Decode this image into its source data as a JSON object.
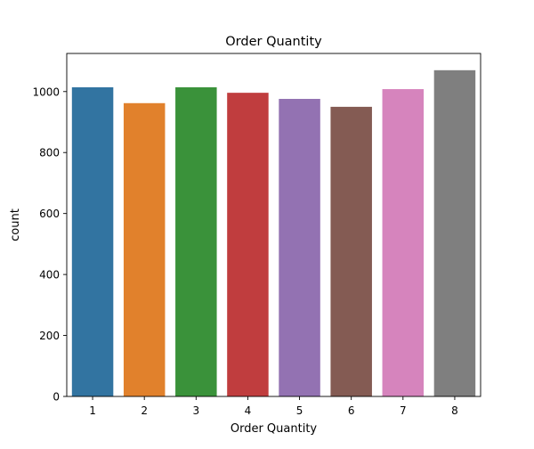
{
  "chart_data": {
    "type": "bar",
    "title": "Order Quantity",
    "xlabel": "Order Quantity",
    "ylabel": "count",
    "categories": [
      "1",
      "2",
      "3",
      "4",
      "5",
      "6",
      "7",
      "8"
    ],
    "values": [
      1014,
      962,
      1014,
      996,
      976,
      950,
      1008,
      1070
    ],
    "ylim": [
      0,
      1125
    ],
    "yticks": [
      0,
      200,
      400,
      600,
      800,
      1000
    ],
    "colors": [
      "#3274a1",
      "#e1812c",
      "#3a923a",
      "#c03d3e",
      "#9372b2",
      "#845b53",
      "#d684bd",
      "#7f7f7f"
    ],
    "grid": false,
    "legend": "none"
  }
}
